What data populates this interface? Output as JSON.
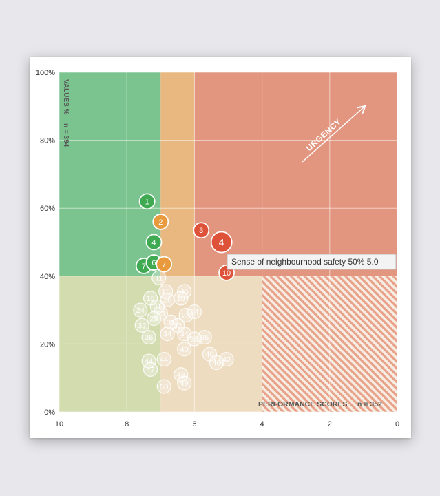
{
  "chart_data": {
    "type": "scatter",
    "title": "",
    "xlabel": "PERFORMANCE SCORES",
    "x_count_label": "n = 352",
    "ylabel": "VALUES %",
    "y_count_label": "n = 394",
    "x_reversed": true,
    "xlim": [
      10,
      0
    ],
    "ylim": [
      0,
      100
    ],
    "x_ticks": [
      {
        "v": 10,
        "t": "10"
      },
      {
        "v": 8,
        "t": "8"
      },
      {
        "v": 6,
        "t": "6"
      },
      {
        "v": 4,
        "t": "4"
      },
      {
        "v": 2,
        "t": "2"
      },
      {
        "v": 0,
        "t": "0"
      }
    ],
    "y_ticks": [
      {
        "v": 100,
        "t": "100%"
      },
      {
        "v": 80,
        "t": "80%"
      },
      {
        "v": 60,
        "t": "60%"
      },
      {
        "v": 40,
        "t": "40%"
      },
      {
        "v": 20,
        "t": "20%"
      },
      {
        "v": 0,
        "t": "0%"
      }
    ],
    "grid": true,
    "urgency_label": "URGENCY",
    "tooltip": "Sense of neighbourhood safety 50% 5.0",
    "zone_colors": {
      "top_green": "#7cc48f",
      "top_orange": "#e8b880",
      "top_red": "#e3967f",
      "bottom_green": "#d3dcaf",
      "bottom_beige": "#eddcc0",
      "hatch": "#e8a088"
    },
    "highlighted_points": [
      {
        "label": "1",
        "x": 7.4,
        "y": 62,
        "color": "#3faa52"
      },
      {
        "label": "2",
        "x": 7.0,
        "y": 56,
        "color": "#e89a3c"
      },
      {
        "label": "4",
        "x": 7.2,
        "y": 50,
        "color": "#3faa52"
      },
      {
        "label": "7",
        "x": 7.5,
        "y": 43,
        "color": "#3faa52"
      },
      {
        "label": "6",
        "x": 7.2,
        "y": 44,
        "color": "#3faa52"
      },
      {
        "label": "7",
        "x": 6.9,
        "y": 43.5,
        "color": "#e89a3c"
      },
      {
        "label": "3",
        "x": 5.8,
        "y": 53.5,
        "color": "#dd5238"
      },
      {
        "label": "4",
        "x": 5.2,
        "y": 50,
        "color": "#dd5238",
        "big": true
      },
      {
        "label": "10",
        "x": 5.05,
        "y": 41,
        "color": "#dd5238"
      }
    ],
    "faded_points": [
      {
        "label": "11",
        "x": 7.05,
        "y": 39.5
      },
      {
        "label": "15",
        "x": 6.85,
        "y": 35.5
      },
      {
        "label": "45",
        "x": 6.3,
        "y": 35.5
      },
      {
        "label": "18",
        "x": 7.3,
        "y": 33.5
      },
      {
        "label": "18",
        "x": 6.4,
        "y": 33.5
      },
      {
        "label": "20",
        "x": 6.8,
        "y": 33
      },
      {
        "label": "24",
        "x": 7.6,
        "y": 30
      },
      {
        "label": "21",
        "x": 7.1,
        "y": 31
      },
      {
        "label": "23",
        "x": 7.0,
        "y": 29
      },
      {
        "label": "24",
        "x": 6.0,
        "y": 29.5
      },
      {
        "label": "28",
        "x": 7.2,
        "y": 27.5
      },
      {
        "label": "28",
        "x": 6.25,
        "y": 28.5
      },
      {
        "label": "31",
        "x": 6.7,
        "y": 26.5
      },
      {
        "label": "32",
        "x": 7.55,
        "y": 25.5
      },
      {
        "label": "32",
        "x": 6.5,
        "y": 25.5
      },
      {
        "label": "36",
        "x": 7.35,
        "y": 22
      },
      {
        "label": "34",
        "x": 6.8,
        "y": 23
      },
      {
        "label": "34",
        "x": 6.3,
        "y": 23
      },
      {
        "label": "38",
        "x": 6.0,
        "y": 21.5
      },
      {
        "label": "36",
        "x": 5.7,
        "y": 22
      },
      {
        "label": "40",
        "x": 6.3,
        "y": 18.5
      },
      {
        "label": "40",
        "x": 5.55,
        "y": 17
      },
      {
        "label": "44",
        "x": 7.35,
        "y": 15
      },
      {
        "label": "44",
        "x": 6.9,
        "y": 15.5
      },
      {
        "label": "46",
        "x": 5.35,
        "y": 14.5
      },
      {
        "label": "42",
        "x": 5.05,
        "y": 15.5
      },
      {
        "label": "47",
        "x": 7.3,
        "y": 12.5
      },
      {
        "label": "48",
        "x": 6.4,
        "y": 11
      },
      {
        "label": "49",
        "x": 6.3,
        "y": 8.5
      },
      {
        "label": "50",
        "x": 6.9,
        "y": 7.5
      }
    ]
  }
}
